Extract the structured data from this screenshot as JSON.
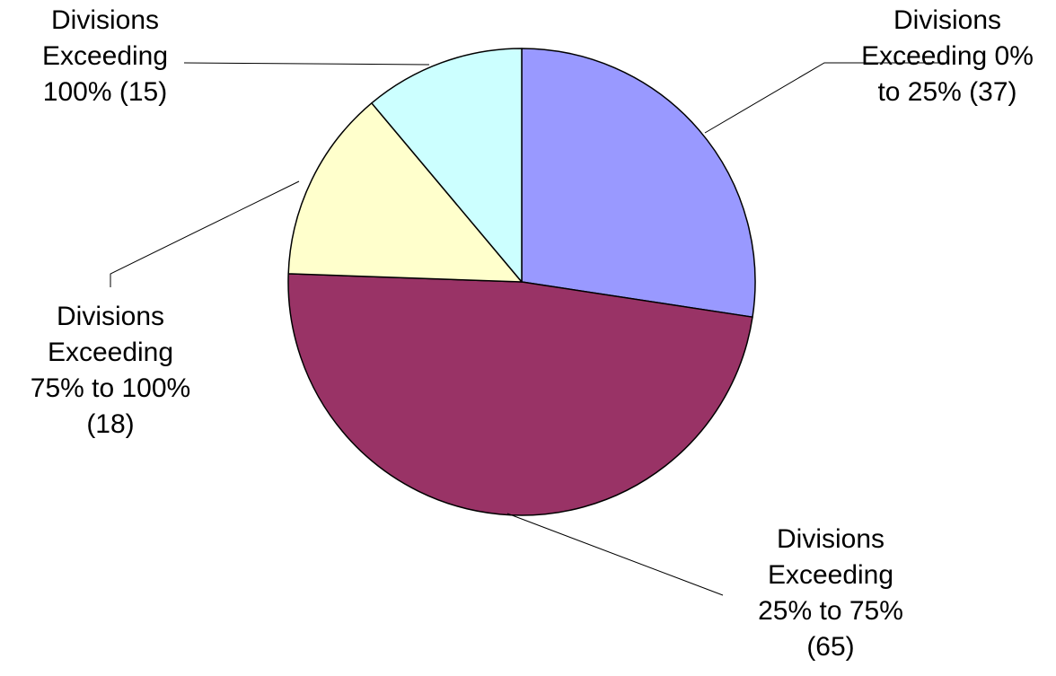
{
  "chart_data": {
    "type": "pie",
    "title": "",
    "start_angle_deg": 0,
    "direction": "clockwise",
    "outline_color": "#000000",
    "slices": [
      {
        "label": "Divisions Exceeding 0% to 25% (37)",
        "label_lines": [
          "Divisions",
          "Exceeding 0%",
          "to 25% (37)"
        ],
        "value": 37,
        "color": "#9999FF"
      },
      {
        "label": "Divisions Exceeding 25% to 75% (65)",
        "label_lines": [
          "Divisions",
          "Exceeding",
          "25% to 75%",
          "(65)"
        ],
        "value": 65,
        "color": "#993366"
      },
      {
        "label": "Divisions Exceeding 75% to 100% (18)",
        "label_lines": [
          "Divisions",
          "Exceeding",
          "75% to 100%",
          "(18)"
        ],
        "value": 18,
        "color": "#FFFFCC"
      },
      {
        "label": "Divisions Exceeding 100% (15)",
        "label_lines": [
          "Divisions",
          "Exceeding",
          "100% (15)"
        ],
        "value": 15,
        "color": "#CCFFFF"
      }
    ]
  }
}
